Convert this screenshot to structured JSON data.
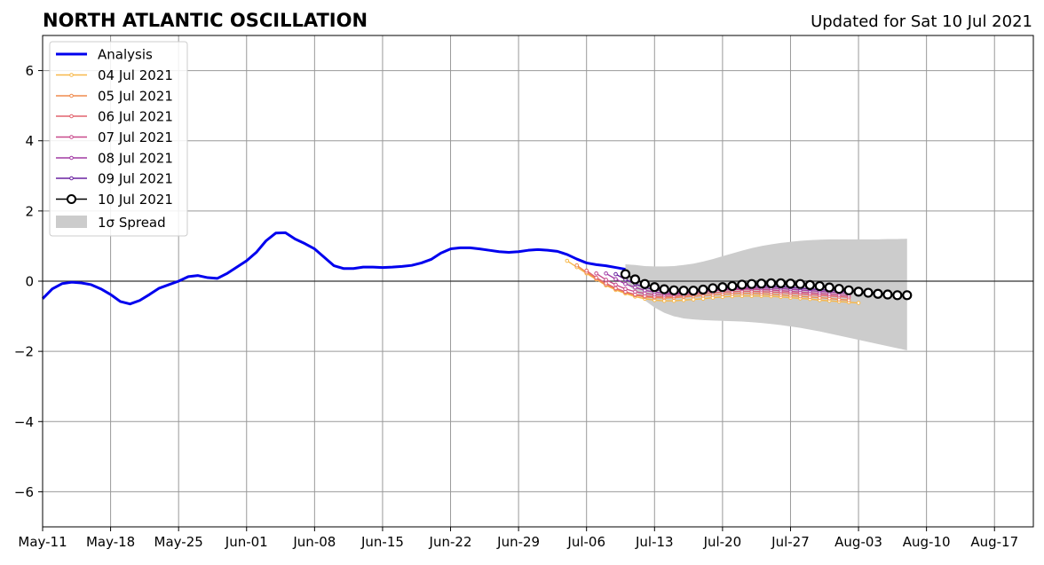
{
  "header": {
    "title": "NORTH ATLANTIC OSCILLATION",
    "updated": "Updated for Sat 10 Jul 2021"
  },
  "legend": {
    "analysis": "Analysis",
    "runs": [
      "04 Jul 2021",
      "05 Jul 2021",
      "06 Jul 2021",
      "07 Jul 2021",
      "08 Jul 2021",
      "09 Jul 2021",
      "10 Jul 2021"
    ],
    "spread": "1σ Spread"
  },
  "colors": {
    "analysis": "#0000ee",
    "runs": [
      "#f7b84a",
      "#f08b4e",
      "#e2636e",
      "#c84a8c",
      "#a23ba4",
      "#6a22a0",
      "#000000"
    ],
    "spread": "#cccccc",
    "grid": "#999999"
  },
  "chart_data": {
    "type": "line",
    "title": "NORTH ATLANTIC OSCILLATION",
    "subtitle": "Updated for Sat 10 Jul 2021",
    "xlabel": "",
    "ylabel": "",
    "x_axis": "days since May-11 2021 (tick labels show dates)",
    "xlim": [
      0,
      102
    ],
    "ylim": [
      -7,
      7
    ],
    "grid": true,
    "legend_position": "top-left",
    "x_ticks": [
      {
        "day": 0,
        "label": "May-11"
      },
      {
        "day": 7,
        "label": "May-18"
      },
      {
        "day": 14,
        "label": "May-25"
      },
      {
        "day": 21,
        "label": "Jun-01"
      },
      {
        "day": 28,
        "label": "Jun-08"
      },
      {
        "day": 35,
        "label": "Jun-15"
      },
      {
        "day": 42,
        "label": "Jun-22"
      },
      {
        "day": 49,
        "label": "Jun-29"
      },
      {
        "day": 56,
        "label": "Jul-06"
      },
      {
        "day": 63,
        "label": "Jul-13"
      },
      {
        "day": 70,
        "label": "Jul-20"
      },
      {
        "day": 77,
        "label": "Jul-27"
      },
      {
        "day": 84,
        "label": "Aug-03"
      },
      {
        "day": 91,
        "label": "Aug-10"
      },
      {
        "day": 98,
        "label": "Aug-17"
      }
    ],
    "y_ticks": [
      {
        "value": 6,
        "label": "6"
      },
      {
        "value": 4,
        "label": "4"
      },
      {
        "value": 2,
        "label": "2"
      },
      {
        "value": 0,
        "label": "0"
      },
      {
        "value": -2,
        "label": "−2"
      },
      {
        "value": -4,
        "label": "−4"
      },
      {
        "value": -6,
        "label": "−6"
      }
    ],
    "analysis": {
      "name": "Analysis",
      "x0": 0,
      "values": [
        -0.5,
        -0.22,
        -0.07,
        -0.03,
        -0.05,
        -0.1,
        -0.22,
        -0.38,
        -0.58,
        -0.65,
        -0.55,
        -0.38,
        -0.2,
        -0.1,
        0.0,
        0.13,
        0.16,
        0.1,
        0.08,
        0.22,
        0.4,
        0.58,
        0.82,
        1.15,
        1.37,
        1.38,
        1.2,
        1.07,
        0.92,
        0.68,
        0.44,
        0.36,
        0.36,
        0.4,
        0.4,
        0.39,
        0.4,
        0.42,
        0.45,
        0.52,
        0.62,
        0.8,
        0.92,
        0.95,
        0.95,
        0.92,
        0.88,
        0.84,
        0.82,
        0.84,
        0.88,
        0.9,
        0.88,
        0.85,
        0.76,
        0.63,
        0.52,
        0.47,
        0.44,
        0.39,
        0.34
      ]
    },
    "forecasts": [
      {
        "name": "04 Jul 2021",
        "x0": 54,
        "values": [
          0.58,
          0.4,
          0.22,
          0.05,
          -0.12,
          -0.25,
          -0.35,
          -0.44,
          -0.5,
          -0.54,
          -0.56,
          -0.56,
          -0.54,
          -0.52,
          -0.5,
          -0.47,
          -0.45,
          -0.43,
          -0.42,
          -0.42,
          -0.42,
          -0.43,
          -0.45,
          -0.47,
          -0.49,
          -0.51,
          -0.54,
          -0.56,
          -0.58,
          -0.6,
          -0.62
        ]
      },
      {
        "name": "05 Jul 2021",
        "x0": 55,
        "values": [
          0.45,
          0.25,
          0.07,
          -0.1,
          -0.22,
          -0.32,
          -0.4,
          -0.45,
          -0.47,
          -0.48,
          -0.47,
          -0.45,
          -0.43,
          -0.41,
          -0.39,
          -0.37,
          -0.36,
          -0.35,
          -0.35,
          -0.36,
          -0.37,
          -0.39,
          -0.41,
          -0.43,
          -0.45,
          -0.47,
          -0.49,
          -0.52,
          -0.54
        ]
      },
      {
        "name": "06 Jul 2021",
        "x0": 56,
        "values": [
          0.3,
          0.1,
          -0.06,
          -0.2,
          -0.3,
          -0.38,
          -0.42,
          -0.44,
          -0.44,
          -0.43,
          -0.41,
          -0.38,
          -0.35,
          -0.33,
          -0.31,
          -0.3,
          -0.29,
          -0.29,
          -0.3,
          -0.31,
          -0.32,
          -0.34,
          -0.36,
          -0.38,
          -0.4,
          -0.42,
          -0.44,
          -0.46
        ]
      },
      {
        "name": "07 Jul 2021",
        "x0": 57,
        "values": [
          0.22,
          0.04,
          -0.1,
          -0.22,
          -0.3,
          -0.35,
          -0.38,
          -0.39,
          -0.38,
          -0.36,
          -0.33,
          -0.3,
          -0.27,
          -0.25,
          -0.24,
          -0.23,
          -0.23,
          -0.24,
          -0.25,
          -0.27,
          -0.29,
          -0.31,
          -0.33,
          -0.35,
          -0.37,
          -0.39,
          -0.41
        ]
      },
      {
        "name": "08 Jul 2021",
        "x0": 58,
        "values": [
          0.22,
          0.06,
          -0.08,
          -0.18,
          -0.26,
          -0.31,
          -0.34,
          -0.35,
          -0.34,
          -0.32,
          -0.29,
          -0.26,
          -0.23,
          -0.21,
          -0.2,
          -0.19,
          -0.19,
          -0.2,
          -0.21,
          -0.23,
          -0.25,
          -0.27,
          -0.29,
          -0.31,
          -0.33,
          -0.35
        ]
      },
      {
        "name": "09 Jul 2021",
        "x0": 59,
        "values": [
          0.2,
          0.05,
          -0.08,
          -0.18,
          -0.24,
          -0.28,
          -0.3,
          -0.3,
          -0.28,
          -0.25,
          -0.22,
          -0.19,
          -0.17,
          -0.15,
          -0.14,
          -0.14,
          -0.15,
          -0.16,
          -0.18,
          -0.2,
          -0.22,
          -0.24,
          -0.26,
          -0.28,
          -0.3
        ]
      },
      {
        "name": "10 Jul 2021",
        "x0": 60,
        "values": [
          0.2,
          0.05,
          -0.08,
          -0.17,
          -0.23,
          -0.26,
          -0.27,
          -0.27,
          -0.24,
          -0.2,
          -0.17,
          -0.14,
          -0.1,
          -0.08,
          -0.07,
          -0.06,
          -0.06,
          -0.07,
          -0.08,
          -0.11,
          -0.14,
          -0.18,
          -0.22,
          -0.26,
          -0.3,
          -0.33,
          -0.36,
          -0.38,
          -0.4,
          -0.4
        ]
      }
    ],
    "spread": {
      "name": "1σ Spread",
      "x0": 60,
      "upper": [
        0.48,
        0.46,
        0.43,
        0.42,
        0.42,
        0.43,
        0.46,
        0.5,
        0.56,
        0.63,
        0.71,
        0.79,
        0.87,
        0.94,
        1.0,
        1.05,
        1.09,
        1.12,
        1.15,
        1.17,
        1.18,
        1.19,
        1.19,
        1.19,
        1.19,
        1.19,
        1.19,
        1.2,
        1.2,
        1.21
      ],
      "lower": [
        -0.05,
        -0.28,
        -0.55,
        -0.75,
        -0.9,
        -1.0,
        -1.06,
        -1.09,
        -1.11,
        -1.12,
        -1.13,
        -1.14,
        -1.15,
        -1.17,
        -1.19,
        -1.22,
        -1.25,
        -1.29,
        -1.33,
        -1.38,
        -1.43,
        -1.49,
        -1.55,
        -1.61,
        -1.67,
        -1.73,
        -1.79,
        -1.85,
        -1.91,
        -1.97
      ]
    }
  }
}
